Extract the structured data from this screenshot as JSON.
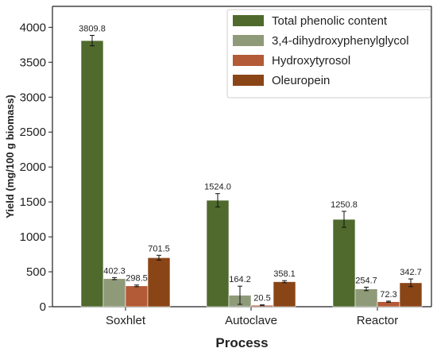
{
  "chart_data": {
    "type": "bar",
    "xlabel": "Process",
    "ylabel": "Yield (mg/100 g biomass)",
    "categories": [
      "Soxhlet",
      "Autoclave",
      "Reactor"
    ],
    "ylim": [
      0,
      4300
    ],
    "y_ticks": [
      0,
      500,
      1000,
      1500,
      2000,
      2500,
      3000,
      3500,
      4000
    ],
    "legend_position": "top-right",
    "grid": false,
    "series": [
      {
        "name": "Total phenolic content",
        "color": "#4f6a2c",
        "values": [
          3809.8,
          1524.0,
          1250.8
        ],
        "value_labels": [
          "3809.8",
          "1524.0",
          "1250.8"
        ],
        "errors": [
          75,
          95,
          115
        ]
      },
      {
        "name": "3,4-dihydroxyphenylglycol",
        "color": "#8f9a79",
        "values": [
          402.3,
          164.2,
          254.7
        ],
        "value_labels": [
          "402.3",
          "164.2",
          "254.7"
        ],
        "errors": [
          15,
          130,
          25
        ]
      },
      {
        "name": "Hydroxytyrosol",
        "color": "#b35a37",
        "values": [
          298.5,
          20.5,
          72.3
        ],
        "value_labels": [
          "298.5",
          "20.5",
          "72.3"
        ],
        "errors": [
          12,
          6,
          8
        ]
      },
      {
        "name": "Oleuropein",
        "color": "#8a4517",
        "values": [
          701.5,
          358.1,
          342.7
        ],
        "value_labels": [
          "701.5",
          "358.1",
          "342.7"
        ],
        "errors": [
          35,
          15,
          55
        ]
      }
    ]
  }
}
